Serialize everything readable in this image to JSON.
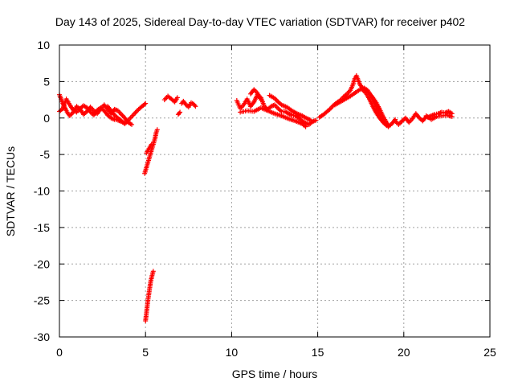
{
  "chart_data": {
    "type": "scatter",
    "title": "Day 143 of 2025, Sidereal Day-to-day VTEC variation (SDTVAR) for receiver p402",
    "xlabel": "GPS time / hours",
    "ylabel": "SDTVAR / TECUs",
    "xlim": [
      0,
      25
    ],
    "ylim": [
      -30,
      10
    ],
    "xticks": [
      0,
      5,
      10,
      15,
      20,
      25
    ],
    "yticks": [
      10,
      5,
      0,
      -5,
      -10,
      -15,
      -20,
      -25,
      -30
    ],
    "grid": true,
    "marker": "+",
    "color": "#ff0000",
    "series": [
      {
        "name": "SDTVAR",
        "segments": [
          [
            [
              0.0,
              3.2
            ],
            [
              0.1,
              2.6
            ],
            [
              0.2,
              2.0
            ],
            [
              0.3,
              1.5
            ],
            [
              0.4,
              1.0
            ],
            [
              0.5,
              0.6
            ],
            [
              0.6,
              0.3
            ],
            [
              0.8,
              0.8
            ],
            [
              1.0,
              1.6
            ],
            [
              1.2,
              1.2
            ],
            [
              1.4,
              0.5
            ],
            [
              1.6,
              0.9
            ],
            [
              1.8,
              1.5
            ],
            [
              2.0,
              1.0
            ],
            [
              2.2,
              0.6
            ],
            [
              2.4,
              1.3
            ],
            [
              2.6,
              1.8
            ],
            [
              2.8,
              1.2
            ],
            [
              3.0,
              0.6
            ],
            [
              3.2,
              1.2
            ],
            [
              3.4,
              1.0
            ],
            [
              3.6,
              0.5
            ],
            [
              3.8,
              0.0
            ],
            [
              4.0,
              -0.6
            ],
            [
              4.2,
              -0.9
            ]
          ],
          [
            [
              0.0,
              0.9
            ],
            [
              0.2,
              1.3
            ],
            [
              0.4,
              2.6
            ],
            [
              0.6,
              1.8
            ],
            [
              0.8,
              1.1
            ],
            [
              1.0,
              0.8
            ],
            [
              1.2,
              1.3
            ],
            [
              1.4,
              1.7
            ],
            [
              1.6,
              1.4
            ],
            [
              1.8,
              0.8
            ],
            [
              2.0,
              0.4
            ],
            [
              2.2,
              1.1
            ],
            [
              2.4,
              1.4
            ],
            [
              2.6,
              1.0
            ],
            [
              2.8,
              0.4
            ],
            [
              3.0,
              0.0
            ],
            [
              3.2,
              -0.2
            ],
            [
              3.4,
              -0.3
            ],
            [
              3.6,
              -0.5
            ],
            [
              3.8,
              -0.7
            ]
          ],
          [
            [
              2.8,
              1.6
            ],
            [
              3.0,
              1.0
            ],
            [
              3.2,
              0.4
            ],
            [
              3.4,
              0.0
            ],
            [
              3.6,
              -0.4
            ],
            [
              3.8,
              -0.8
            ],
            [
              4.0,
              -0.3
            ],
            [
              4.2,
              0.2
            ],
            [
              4.4,
              0.7
            ],
            [
              4.6,
              1.2
            ],
            [
              4.8,
              1.6
            ],
            [
              5.0,
              2.0
            ]
          ],
          [
            [
              4.95,
              -7.6
            ],
            [
              5.05,
              -6.8
            ],
            [
              5.15,
              -6.0
            ],
            [
              5.25,
              -5.2
            ],
            [
              5.35,
              -4.4
            ],
            [
              5.45,
              -3.6
            ],
            [
              5.55,
              -2.8
            ],
            [
              5.62,
              -2.0
            ],
            [
              5.68,
              -1.6
            ]
          ],
          [
            [
              5.05,
              -4.8
            ],
            [
              5.2,
              -4.2
            ],
            [
              5.35,
              -3.6
            ]
          ],
          [
            [
              5.0,
              -27.8
            ],
            [
              5.05,
              -26.8
            ],
            [
              5.1,
              -25.8
            ],
            [
              5.15,
              -24.8
            ],
            [
              5.2,
              -24.0
            ],
            [
              5.25,
              -23.2
            ],
            [
              5.3,
              -22.4
            ],
            [
              5.38,
              -21.6
            ],
            [
              5.45,
              -21.0
            ]
          ],
          [
            [
              6.1,
              2.5
            ],
            [
              6.3,
              3.0
            ],
            [
              6.5,
              2.6
            ],
            [
              6.7,
              2.2
            ],
            [
              6.85,
              2.8
            ]
          ],
          [
            [
              6.9,
              0.5
            ],
            [
              7.0,
              0.8
            ]
          ],
          [
            [
              7.1,
              2.0
            ],
            [
              7.2,
              2.3
            ],
            [
              7.35,
              1.8
            ],
            [
              7.5,
              1.5
            ],
            [
              7.65,
              2.1
            ],
            [
              7.8,
              1.9
            ],
            [
              7.9,
              1.6
            ]
          ],
          [
            [
              10.3,
              2.4
            ],
            [
              10.5,
              1.3
            ],
            [
              10.7,
              1.8
            ],
            [
              10.9,
              2.6
            ],
            [
              11.1,
              1.6
            ],
            [
              11.3,
              2.2
            ],
            [
              11.5,
              3.2
            ],
            [
              11.7,
              2.8
            ],
            [
              11.9,
              1.6
            ],
            [
              12.1,
              1.2
            ],
            [
              12.3,
              1.6
            ],
            [
              12.5,
              1.8
            ],
            [
              12.7,
              1.3
            ],
            [
              12.9,
              0.9
            ],
            [
              13.1,
              0.9
            ],
            [
              13.3,
              0.6
            ],
            [
              13.5,
              0.4
            ],
            [
              13.7,
              0.3
            ],
            [
              13.9,
              0.0
            ],
            [
              14.1,
              -0.4
            ],
            [
              14.3,
              -0.7
            ],
            [
              14.5,
              -0.9
            ],
            [
              14.7,
              -0.5
            ],
            [
              14.9,
              -0.3
            ]
          ],
          [
            [
              10.5,
              0.8
            ],
            [
              10.9,
              1.0
            ],
            [
              11.3,
              0.9
            ],
            [
              11.7,
              1.4
            ],
            [
              12.1,
              1.0
            ],
            [
              12.5,
              0.6
            ],
            [
              12.9,
              0.3
            ],
            [
              13.3,
              -0.1
            ],
            [
              13.7,
              -0.4
            ],
            [
              14.1,
              -0.8
            ],
            [
              14.3,
              -1.2
            ]
          ],
          [
            [
              11.1,
              3.3
            ],
            [
              11.3,
              3.9
            ],
            [
              11.5,
              3.4
            ],
            [
              11.7,
              2.5
            ]
          ],
          [
            [
              12.2,
              3.1
            ],
            [
              12.5,
              2.7
            ],
            [
              12.7,
              2.2
            ],
            [
              12.9,
              1.8
            ],
            [
              13.2,
              1.5
            ],
            [
              13.5,
              1.0
            ],
            [
              13.8,
              0.6
            ],
            [
              14.1,
              0.3
            ],
            [
              14.4,
              -0.1
            ],
            [
              14.6,
              -0.3
            ]
          ],
          [
            [
              15.1,
              0.1
            ],
            [
              15.3,
              0.4
            ],
            [
              15.5,
              0.8
            ],
            [
              15.7,
              1.2
            ],
            [
              15.9,
              1.7
            ],
            [
              16.1,
              2.1
            ],
            [
              16.3,
              2.4
            ],
            [
              16.5,
              2.9
            ],
            [
              16.7,
              3.3
            ],
            [
              16.9,
              3.8
            ],
            [
              17.05,
              4.6
            ],
            [
              17.15,
              5.4
            ],
            [
              17.25,
              5.8
            ],
            [
              17.35,
              5.2
            ],
            [
              17.45,
              4.6
            ],
            [
              17.6,
              4.1
            ],
            [
              17.8,
              3.8
            ],
            [
              18.0,
              3.4
            ],
            [
              18.2,
              2.8
            ],
            [
              18.4,
              2.1
            ],
            [
              18.6,
              1.2
            ],
            [
              18.8,
              0.2
            ],
            [
              19.0,
              -0.6
            ],
            [
              19.1,
              -1.0
            ]
          ],
          [
            [
              16.0,
              1.8
            ],
            [
              16.3,
              2.2
            ],
            [
              16.6,
              2.6
            ],
            [
              16.9,
              3.0
            ],
            [
              17.2,
              3.5
            ],
            [
              17.45,
              3.9
            ],
            [
              17.7,
              4.1
            ],
            [
              17.9,
              3.8
            ],
            [
              18.1,
              3.0
            ],
            [
              18.3,
              2.0
            ],
            [
              18.5,
              1.0
            ],
            [
              18.7,
              0.0
            ],
            [
              18.9,
              -0.8
            ],
            [
              19.1,
              -1.2
            ],
            [
              19.3,
              -0.8
            ],
            [
              19.5,
              -0.2
            ]
          ],
          [
            [
              17.6,
              3.9
            ],
            [
              17.8,
              3.4
            ],
            [
              18.0,
              2.6
            ],
            [
              18.2,
              1.6
            ],
            [
              18.4,
              0.7
            ],
            [
              18.6,
              0.0
            ],
            [
              18.8,
              -0.6
            ],
            [
              19.0,
              -1.0
            ]
          ],
          [
            [
              19.5,
              -0.4
            ],
            [
              19.7,
              -0.9
            ],
            [
              19.9,
              -0.4
            ],
            [
              20.1,
              0.0
            ],
            [
              20.3,
              -0.6
            ],
            [
              20.5,
              -0.1
            ],
            [
              20.7,
              0.6
            ],
            [
              20.9,
              0.0
            ],
            [
              21.1,
              -0.4
            ],
            [
              21.3,
              0.2
            ]
          ],
          [
            [
              21.4,
              0.1
            ],
            [
              21.6,
              0.3
            ],
            [
              21.8,
              0.5
            ],
            [
              22.0,
              0.6
            ],
            [
              22.2,
              0.8
            ],
            [
              22.4,
              0.7
            ],
            [
              22.6,
              0.9
            ],
            [
              22.8,
              0.6
            ]
          ],
          [
            [
              21.3,
              0.3
            ],
            [
              21.6,
              -0.2
            ],
            [
              21.9,
              0.2
            ],
            [
              22.2,
              0.3
            ],
            [
              22.5,
              0.4
            ],
            [
              22.8,
              0.2
            ]
          ]
        ]
      }
    ]
  }
}
